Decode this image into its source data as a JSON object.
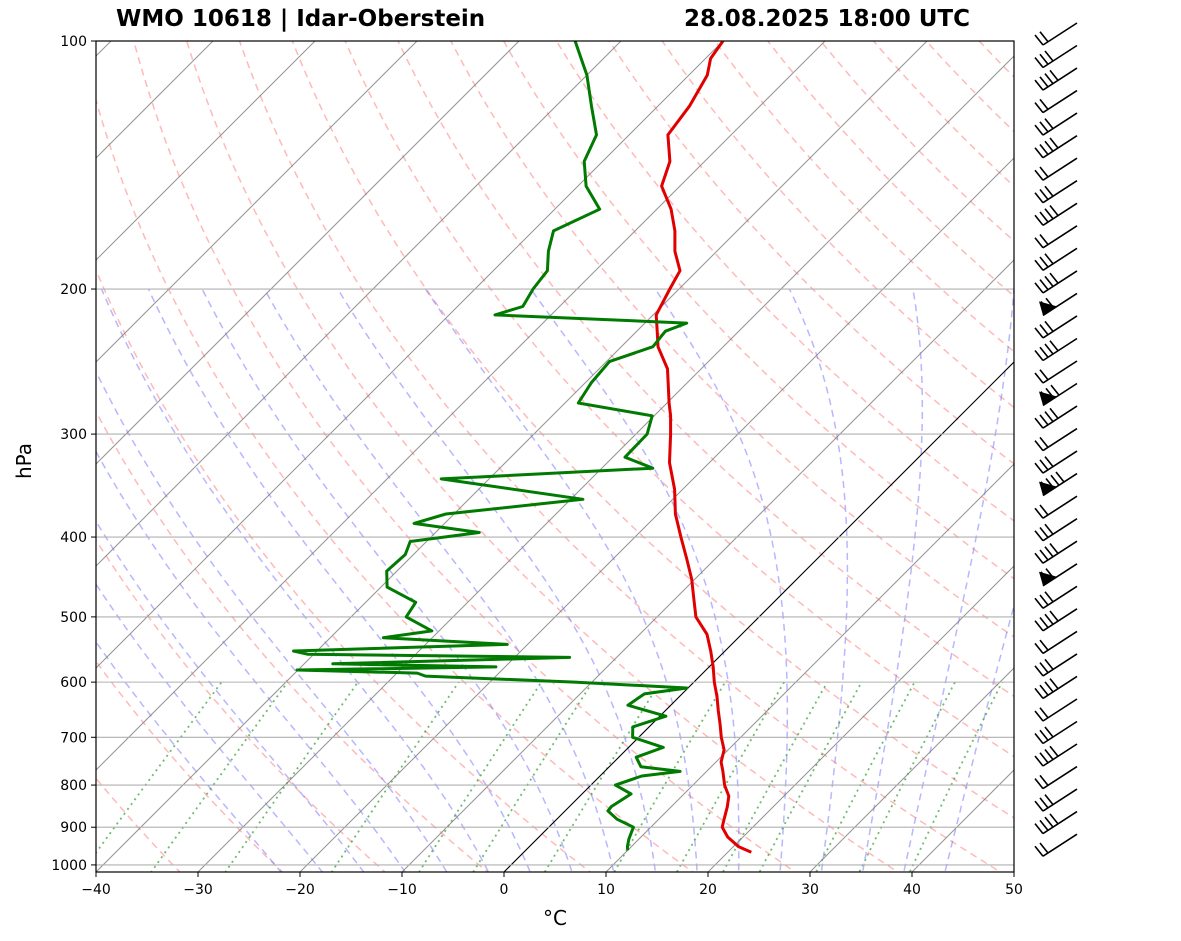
{
  "title_left": "WMO 10618 | Idar-Oberstein",
  "title_right": "28.08.2025 18:00 UTC",
  "chart_data": {
    "type": "line",
    "chart_kind": "skew-T log-p sounding",
    "xlabel": "°C",
    "ylabel": "hPa",
    "xlim": [
      -40,
      50
    ],
    "ylim": [
      1020,
      100
    ],
    "y_scale": "log",
    "grid": true,
    "x_ticks": [
      -40,
      -30,
      -20,
      -10,
      0,
      10,
      20,
      30,
      40,
      50
    ],
    "x_tick_labels": [
      "−40",
      "−30",
      "−20",
      "−10",
      "0",
      "10",
      "20",
      "30",
      "40",
      "50"
    ],
    "y_ticks": [
      100,
      200,
      300,
      400,
      500,
      600,
      700,
      800,
      900,
      1000
    ],
    "y_tick_labels": [
      "100",
      "200",
      "300",
      "400",
      "500",
      "600",
      "700",
      "800",
      "900",
      "1000"
    ],
    "colors": {
      "temperature": "#e00000",
      "dewpoint": "#007a00",
      "dry_adiabats": "#ff8080",
      "moist_adiabats": "#7070ff",
      "mixing_ratio": "#30a030",
      "isotherms": "#808080",
      "grid": "#b0b0b0"
    },
    "series": [
      {
        "key": "temperature",
        "pressure": [
          965,
          950,
          925,
          900,
          880,
          850,
          825,
          800,
          770,
          750,
          725,
          700,
          675,
          650,
          625,
          600,
          575,
          550,
          525,
          500,
          475,
          450,
          425,
          400,
          375,
          350,
          325,
          300,
          285,
          275,
          250,
          235,
          225,
          215,
          200,
          190,
          180,
          170,
          160,
          150,
          140,
          130,
          120,
          110,
          105,
          100
        ],
        "temperature": [
          22.3,
          20.5,
          18.5,
          17.0,
          16.4,
          15.5,
          14.6,
          13.1,
          11.6,
          10.5,
          9.6,
          8.1,
          6.7,
          5.2,
          3.7,
          2.0,
          0.4,
          -1.4,
          -3.4,
          -6.2,
          -8.2,
          -10.3,
          -12.8,
          -15.5,
          -18.3,
          -20.8,
          -23.9,
          -26.6,
          -28.4,
          -29.8,
          -33.3,
          -36.4,
          -38.0,
          -39.7,
          -40.9,
          -41.7,
          -44.1,
          -46.1,
          -48.6,
          -51.8,
          -53.4,
          -56.2,
          -56.9,
          -58.2,
          -59.5,
          -60.0
        ]
      },
      {
        "key": "dewpoint",
        "pressure": [
          960,
          950,
          930,
          900,
          880,
          860,
          850,
          820,
          800,
          780,
          770,
          760,
          740,
          720,
          700,
          680,
          660,
          640,
          620,
          610,
          600,
          590,
          585,
          580,
          575,
          570,
          560,
          555,
          550,
          540,
          530,
          520,
          500,
          480,
          460,
          440,
          420,
          405,
          395,
          385,
          375,
          360,
          340,
          330,
          320,
          300,
          285,
          275,
          260,
          245,
          235,
          225,
          220,
          215,
          210,
          200,
          190,
          180,
          170,
          160,
          150,
          140,
          130,
          120,
          110,
          100
        ],
        "dewpoint": [
          10.0,
          9.6,
          9.0,
          8.3,
          5.9,
          4.2,
          4.1,
          4.8,
          2.4,
          4.1,
          7.4,
          3.1,
          1.7,
          3.4,
          -0.6,
          -1.6,
          0.6,
          -4.2,
          -3.7,
          -0.1,
          -11.7,
          -26.9,
          -28.0,
          -40.1,
          -20.9,
          -37.2,
          -14.6,
          -40.6,
          -42.3,
          -22.0,
          -34.8,
          -30.7,
          -34.6,
          -35.1,
          -39.4,
          -41.0,
          -40.8,
          -41.6,
          -35.7,
          -43.0,
          -40.8,
          -28.8,
          -44.7,
          -25.0,
          -28.8,
          -28.9,
          -30.2,
          -38.7,
          -39.4,
          -39.7,
          -36.9,
          -37.2,
          -35.9,
          -55.5,
          -53.6,
          -54.3,
          -54.7,
          -56.5,
          -58.0,
          -55.6,
          -59.2,
          -61.8,
          -63.2,
          -66.5,
          -70.0,
          -74.5
        ]
      }
    ],
    "wind_barbs": {
      "location": "right",
      "count": 37
    }
  }
}
